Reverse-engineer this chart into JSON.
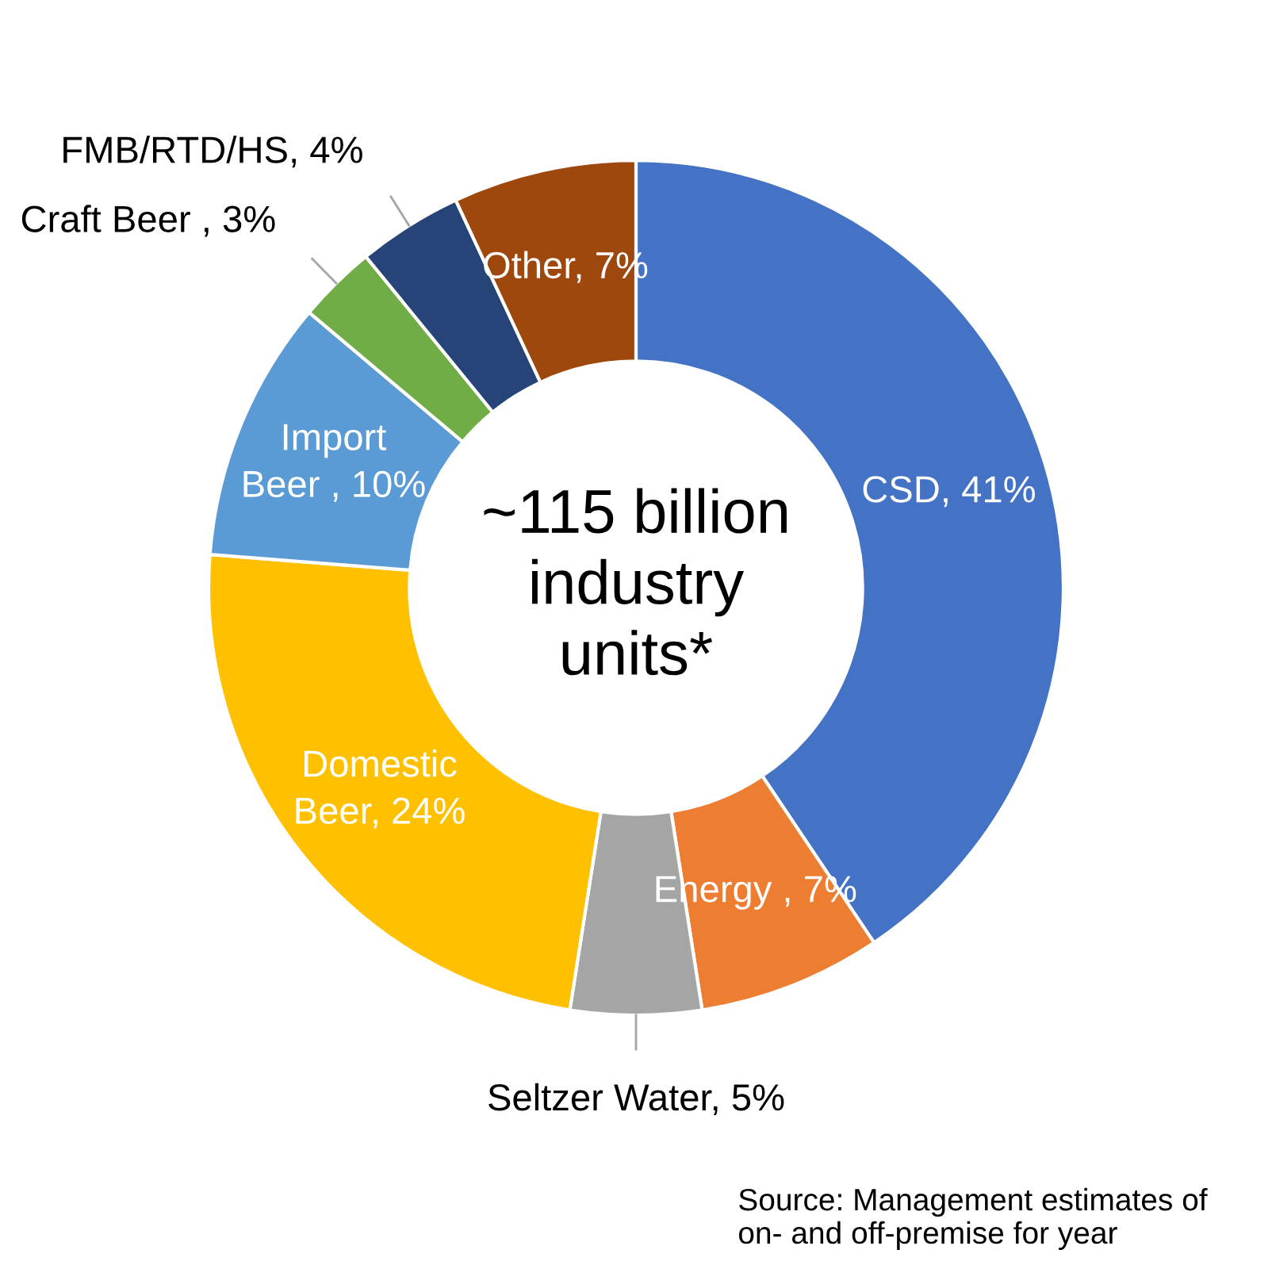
{
  "chart_data": {
    "type": "donut",
    "categories": [
      "CSD",
      "Energy ",
      "Seltzer Water",
      "Domestic Beer",
      "Import Beer ",
      "Craft Beer ",
      "FMB/RTD/HS",
      "Other"
    ],
    "values": [
      41,
      7,
      5,
      24,
      10,
      3,
      4,
      7
    ],
    "colors": [
      "#4472c4",
      "#ed7d31",
      "#a5a5a5",
      "#ffc000",
      "#5b9bd5",
      "#70ad47",
      "#264478",
      "#9e480e"
    ],
    "value_labels": [
      "41%",
      "7%",
      "5%",
      "24%",
      "10%",
      "3%",
      "4%",
      "7%"
    ],
    "annotations": [
      "~115 billion\nindustry\nunits*",
      "Source: Management estimates of\non- and off-premise for year"
    ],
    "legend": false
  }
}
